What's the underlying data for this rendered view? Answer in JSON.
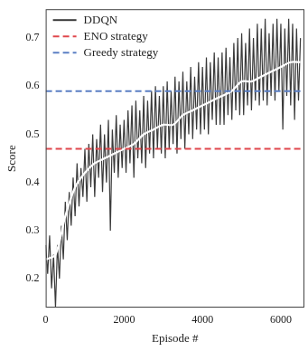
{
  "chart_data": {
    "type": "line",
    "x_label": "Episode #",
    "y_label": "Score",
    "xlim": [
      0,
      6600
    ],
    "xticks": [
      0,
      2000,
      4000,
      6000
    ],
    "ylim": [
      0.14,
      0.76
    ],
    "yticks": [
      0.2,
      0.3,
      0.4,
      0.5,
      0.6,
      0.7
    ],
    "grid": false,
    "legend": "upper left",
    "series": [
      {
        "name": "DDQN",
        "color": "#3a3a3a",
        "line_style": "solid",
        "x": [
          0,
          50,
          100,
          150,
          200,
          250,
          300,
          350,
          400,
          450,
          500,
          550,
          600,
          650,
          700,
          750,
          800,
          850,
          900,
          950,
          1000,
          1050,
          1100,
          1150,
          1200,
          1250,
          1300,
          1350,
          1400,
          1450,
          1500,
          1550,
          1600,
          1650,
          1700,
          1750,
          1800,
          1850,
          1900,
          1950,
          2000,
          2050,
          2100,
          2150,
          2200,
          2250,
          2300,
          2350,
          2400,
          2450,
          2500,
          2550,
          2600,
          2650,
          2700,
          2750,
          2800,
          2850,
          2900,
          2950,
          3000,
          3050,
          3100,
          3150,
          3200,
          3250,
          3300,
          3350,
          3400,
          3450,
          3500,
          3550,
          3600,
          3650,
          3700,
          3750,
          3800,
          3850,
          3900,
          3950,
          4000,
          4050,
          4100,
          4150,
          4200,
          4250,
          4300,
          4350,
          4400,
          4450,
          4500,
          4550,
          4600,
          4650,
          4700,
          4750,
          4800,
          4850,
          4900,
          4950,
          5000,
          5050,
          5100,
          5150,
          5200,
          5250,
          5300,
          5350,
          5400,
          5450,
          5500,
          5550,
          5600,
          5650,
          5700,
          5750,
          5800,
          5850,
          5900,
          5950,
          6000,
          6050,
          6100,
          6150,
          6200,
          6250,
          6300,
          6350,
          6400,
          6450,
          6500
        ],
        "values": [
          0.27,
          0.21,
          0.29,
          0.18,
          0.25,
          0.14,
          0.27,
          0.2,
          0.31,
          0.24,
          0.36,
          0.28,
          0.38,
          0.31,
          0.41,
          0.33,
          0.44,
          0.35,
          0.43,
          0.37,
          0.47,
          0.36,
          0.48,
          0.39,
          0.5,
          0.37,
          0.49,
          0.41,
          0.52,
          0.38,
          0.5,
          0.4,
          0.53,
          0.3,
          0.51,
          0.42,
          0.54,
          0.41,
          0.52,
          0.43,
          0.53,
          0.42,
          0.55,
          0.44,
          0.56,
          0.41,
          0.57,
          0.45,
          0.55,
          0.44,
          0.58,
          0.43,
          0.57,
          0.46,
          0.59,
          0.45,
          0.6,
          0.47,
          0.58,
          0.46,
          0.6,
          0.45,
          0.61,
          0.47,
          0.59,
          0.48,
          0.62,
          0.46,
          0.61,
          0.49,
          0.63,
          0.47,
          0.61,
          0.5,
          0.64,
          0.49,
          0.62,
          0.51,
          0.65,
          0.5,
          0.64,
          0.51,
          0.66,
          0.5,
          0.65,
          0.53,
          0.67,
          0.52,
          0.66,
          0.52,
          0.67,
          0.52,
          0.68,
          0.54,
          0.66,
          0.53,
          0.69,
          0.55,
          0.7,
          0.54,
          0.71,
          0.54,
          0.69,
          0.56,
          0.72,
          0.55,
          0.7,
          0.57,
          0.73,
          0.56,
          0.72,
          0.57,
          0.74,
          0.56,
          0.71,
          0.58,
          0.73,
          0.57,
          0.74,
          0.59,
          0.73,
          0.51,
          0.72,
          0.58,
          0.74,
          0.56,
          0.73,
          0.53,
          0.72,
          0.57,
          0.7
        ],
        "smoothed": {
          "x": [
            0,
            250,
            500,
            750,
            1000,
            1250,
            1500,
            1750,
            2000,
            2250,
            2500,
            2750,
            3000,
            3250,
            3500,
            3750,
            4000,
            4250,
            4500,
            4750,
            5000,
            5250,
            5500,
            5750,
            6000,
            6250,
            6500
          ],
          "values": [
            0.24,
            0.25,
            0.33,
            0.39,
            0.42,
            0.44,
            0.45,
            0.46,
            0.47,
            0.48,
            0.5,
            0.51,
            0.52,
            0.52,
            0.54,
            0.55,
            0.56,
            0.57,
            0.58,
            0.59,
            0.61,
            0.61,
            0.62,
            0.63,
            0.64,
            0.65,
            0.65
          ],
          "color": "#ffffff"
        }
      },
      {
        "name": "ENO strategy",
        "color": "#e0474c",
        "line_style": "dashed",
        "value": 0.47
      },
      {
        "name": "Greedy strategy",
        "color": "#5b7fc4",
        "line_style": "dashed",
        "value": 0.59
      }
    ]
  }
}
